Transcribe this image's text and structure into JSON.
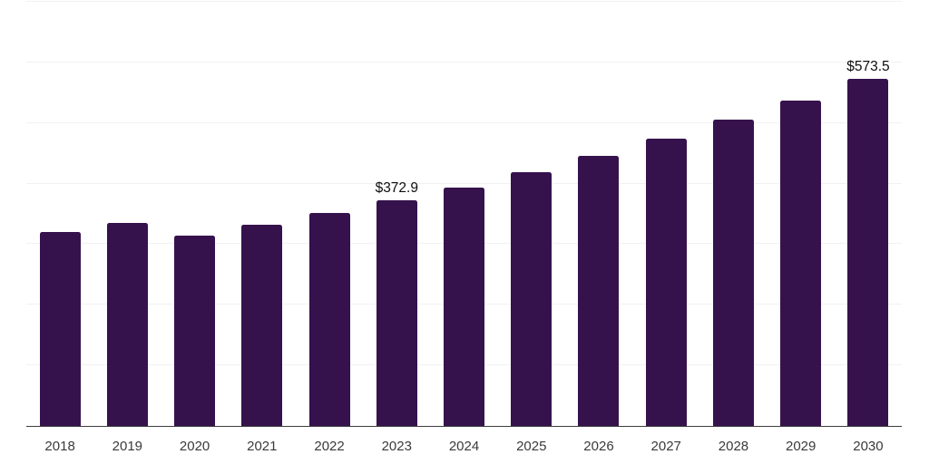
{
  "chart_data": {
    "type": "bar",
    "title": "",
    "xlabel": "",
    "ylabel": "",
    "categories": [
      "2018",
      "2019",
      "2020",
      "2021",
      "2022",
      "2023",
      "2024",
      "2025",
      "2026",
      "2027",
      "2028",
      "2029",
      "2030"
    ],
    "values": [
      319.5,
      335.0,
      314.5,
      332.0,
      351.5,
      372.9,
      394.0,
      418.5,
      446.0,
      474.5,
      505.5,
      536.5,
      573.5
    ],
    "point_labels": {
      "2023": "$372.9",
      "2030": "$573.5"
    },
    "ylim": [
      0,
      700
    ],
    "grid_interval": 100,
    "grid": "horizontal-only",
    "legend": "none",
    "y_tick_labels_visible": false,
    "bar_color": "#36124d",
    "gridline_color": "#f1f1f3",
    "axis_line_color": "#3d3d3d",
    "tick_label_color": "#3a3a3a",
    "value_label_color": "#0e0e0e"
  }
}
